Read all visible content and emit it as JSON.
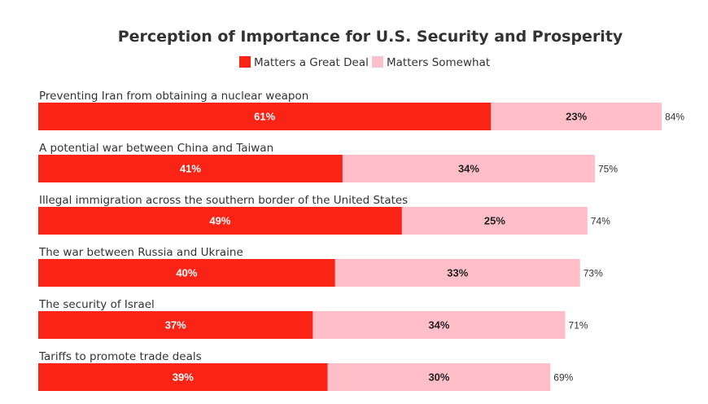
{
  "chart_data": {
    "type": "bar",
    "orientation": "horizontal",
    "stacked": true,
    "title": "Perception of Importance for U.S. Security and Prosperity",
    "xlabel": "",
    "ylabel": "",
    "xlim": [
      0,
      100
    ],
    "grid": false,
    "legend_position": "top-center",
    "value_suffix": "%",
    "categories": [
      "Preventing Iran from obtaining a nuclear weapon",
      "A potential war between China and Taiwan",
      "Illegal immigration across the southern border of the United States",
      "The war between Russia and Ukraine",
      "The security of Israel",
      "Tariffs to promote trade deals"
    ],
    "series": [
      {
        "name": "Matters a Great Deal",
        "color": "#f92415",
        "label_color": "#ffffff",
        "values": [
          61,
          41,
          49,
          40,
          37,
          39
        ]
      },
      {
        "name": "Matters Somewhat",
        "color": "#ffbec8",
        "label_color": "#222222",
        "values": [
          23,
          34,
          25,
          33,
          34,
          30
        ]
      }
    ],
    "totals": [
      84,
      75,
      74,
      73,
      71,
      69
    ]
  }
}
